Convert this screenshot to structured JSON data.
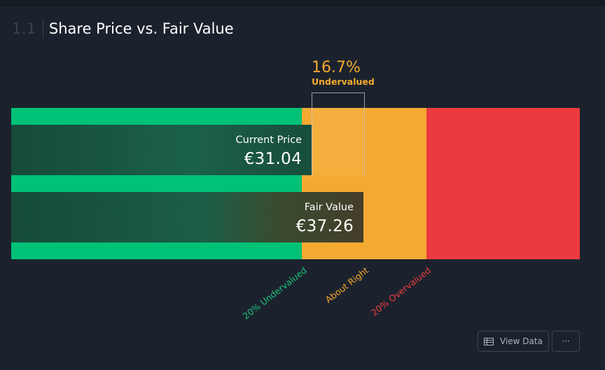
{
  "section": {
    "number": "1.1",
    "title": "Share Price vs. Fair Value"
  },
  "valuation": {
    "percent_text": "16.7%",
    "status_text": "Undervalued",
    "current_price": {
      "label": "Current Price",
      "value_text": "€31.04",
      "value": 31.04
    },
    "fair_value": {
      "label": "Fair Value",
      "value_text": "€37.26",
      "value": 37.26
    }
  },
  "zones": {
    "undervalued_label": "20% Undervalued",
    "about_right_label": "About Right",
    "overvalued_label": "20% Overvalued"
  },
  "colors": {
    "undervalued": "#00c277",
    "about_right": "#f4aa32",
    "overvalued": "#ec3b3e",
    "background": "#1b222d"
  },
  "actions": {
    "view_data_label": "View Data",
    "more_label": "···"
  },
  "icons": {
    "view_data": "table-icon",
    "more": "ellipsis-icon"
  }
}
